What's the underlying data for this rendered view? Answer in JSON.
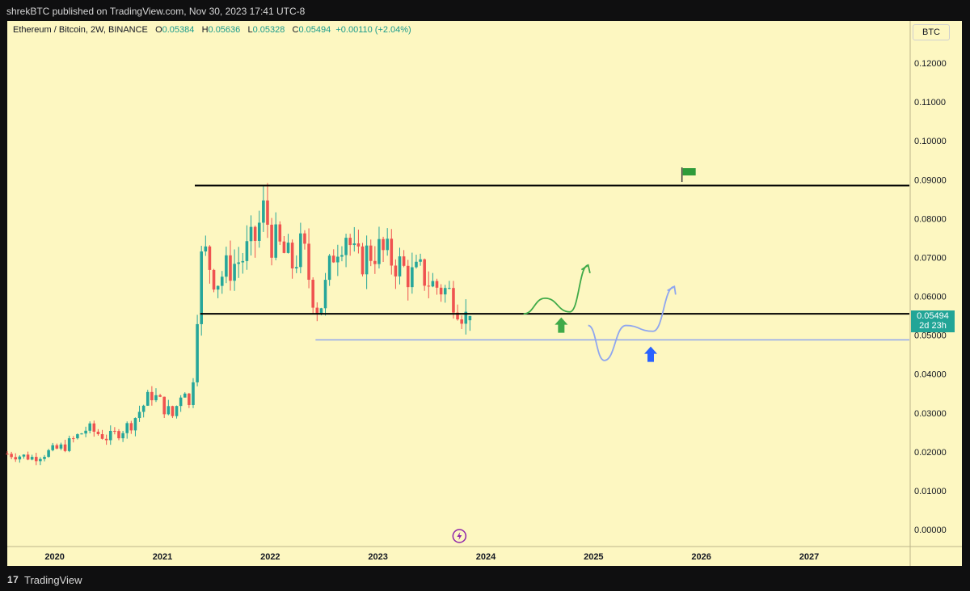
{
  "publisher_line": "shrekBTC published on TradingView.com, Nov 30, 2023 17:41 UTC-8",
  "footer": {
    "logo_mark": "17",
    "brand": "TradingView"
  },
  "legend": {
    "symbol": "Ethereum / Bitcoin, 2W, BINANCE",
    "o_label": "O",
    "o_value": "0.05384",
    "h_label": "H",
    "h_value": "0.05636",
    "l_label": "L",
    "l_value": "0.05328",
    "c_label": "C",
    "c_value": "0.05494",
    "change": "+0.00110 (+2.04%)"
  },
  "currency_button": "BTC",
  "last_price": {
    "value": "0.05494",
    "countdown": "2d 23h"
  },
  "colors": {
    "background": "#fdf7c1",
    "up": "#26a69a",
    "down": "#ef5350",
    "support_line": "#8fa6ef",
    "green_path": "#3faa48",
    "blue_arrow": "#2962ff",
    "tag": "#22a597"
  },
  "chart_data": {
    "type": "candlestick",
    "title": "Ethereum / Bitcoin, 2W, BINANCE",
    "x_ticks": [
      "2020",
      "2021",
      "2022",
      "2023",
      "2024",
      "2025",
      "2026",
      "2027"
    ],
    "y_ticks": [
      "0.12000",
      "0.11000",
      "0.10000",
      "0.09000",
      "0.08000",
      "0.07000",
      "0.06000",
      "0.05000",
      "0.04000",
      "0.03000",
      "0.02000",
      "0.01000",
      "0.00000"
    ],
    "ylim": [
      0,
      0.13
    ],
    "xlim": [
      2019.56,
      2027.93
    ],
    "horizontal_lines": [
      {
        "name": "resistance",
        "y": 0.0885,
        "x_start": 2021.3,
        "color": "#000000"
      },
      {
        "name": "mid-support",
        "y": 0.0555,
        "x_start": 2021.35,
        "color": "#000000"
      },
      {
        "name": "low-support",
        "y": 0.0488,
        "x_start": 2022.42,
        "color": "#8fa6ef"
      }
    ],
    "last_close": 0.05494,
    "candles_anchor": [
      [
        2019.56,
        0.0195
      ],
      [
        2019.8,
        0.0185
      ],
      [
        2020.1,
        0.0215
      ],
      [
        2020.3,
        0.026
      ],
      [
        2020.5,
        0.0235
      ],
      [
        2020.7,
        0.027
      ],
      [
        2020.9,
        0.035
      ],
      [
        2021.0,
        0.032
      ],
      [
        2021.1,
        0.029
      ],
      [
        2021.2,
        0.038
      ],
      [
        2021.25,
        0.031
      ],
      [
        2021.3,
        0.044
      ],
      [
        2021.34,
        0.066
      ],
      [
        2021.38,
        0.072
      ],
      [
        2021.5,
        0.064
      ],
      [
        2021.6,
        0.067
      ],
      [
        2021.75,
        0.07
      ],
      [
        2021.85,
        0.074
      ],
      [
        2021.95,
        0.083
      ],
      [
        2022.0,
        0.075
      ],
      [
        2022.1,
        0.072
      ],
      [
        2022.2,
        0.068
      ],
      [
        2022.3,
        0.073
      ],
      [
        2022.38,
        0.062
      ],
      [
        2022.45,
        0.056
      ],
      [
        2022.52,
        0.063
      ],
      [
        2022.6,
        0.073
      ],
      [
        2022.7,
        0.077
      ],
      [
        2022.8,
        0.068
      ],
      [
        2022.9,
        0.071
      ],
      [
        2023.0,
        0.072
      ],
      [
        2023.1,
        0.07
      ],
      [
        2023.2,
        0.068
      ],
      [
        2023.3,
        0.065
      ],
      [
        2023.4,
        0.066
      ],
      [
        2023.5,
        0.063
      ],
      [
        2023.6,
        0.062
      ],
      [
        2023.7,
        0.06
      ],
      [
        2023.8,
        0.055
      ],
      [
        2023.86,
        0.05384
      ]
    ],
    "annotations": [
      {
        "type": "flag",
        "x": 2025.82,
        "y": 0.0915,
        "color": "#2e9b3a"
      },
      {
        "type": "curve-arrow",
        "color": "#3faa48",
        "points": [
          [
            2024.35,
            0.0555
          ],
          [
            2024.55,
            0.0595
          ],
          [
            2024.78,
            0.056
          ],
          [
            2024.95,
            0.068
          ]
        ]
      },
      {
        "type": "up-arrow",
        "x": 2024.7,
        "y": 0.0525,
        "color": "#3faa48"
      },
      {
        "type": "curve-arrow",
        "color": "#8fa6ef",
        "points": [
          [
            2024.95,
            0.0525
          ],
          [
            2025.1,
            0.0435
          ],
          [
            2025.3,
            0.0525
          ],
          [
            2025.55,
            0.051
          ],
          [
            2025.75,
            0.0625
          ]
        ]
      },
      {
        "type": "up-arrow",
        "x": 2025.53,
        "y": 0.045,
        "color": "#2962ff"
      },
      {
        "type": "lightning-icon",
        "x": 2023.86,
        "y": -0.0015,
        "color": "#8e24aa"
      }
    ]
  }
}
